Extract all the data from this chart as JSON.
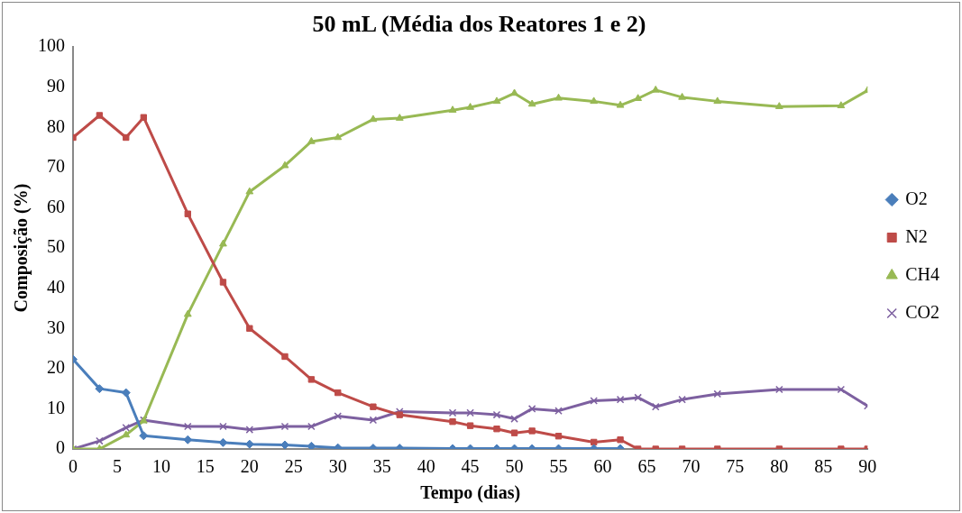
{
  "chart_data": {
    "type": "line",
    "title": "50 mL (Média dos Reatores 1 e 2)",
    "xlabel": "Tempo (dias)",
    "ylabel": "Composição (%)",
    "x": [
      0,
      3,
      6,
      8,
      13,
      17,
      20,
      24,
      27,
      30,
      34,
      37,
      43,
      45,
      48,
      50,
      52,
      55,
      59,
      62,
      64,
      66,
      69,
      73,
      80,
      87,
      90
    ],
    "xlim": [
      0,
      90
    ],
    "xticks": [
      0,
      5,
      10,
      15,
      20,
      25,
      30,
      35,
      40,
      45,
      50,
      55,
      60,
      65,
      70,
      75,
      80,
      85,
      90
    ],
    "ylim": [
      0,
      100
    ],
    "yticks": [
      0,
      10,
      20,
      30,
      40,
      50,
      60,
      70,
      80,
      90,
      100
    ],
    "grid": false,
    "legend": "right",
    "series": [
      {
        "name": "O2",
        "color": "#4a7ebb",
        "marker": "diamond",
        "values": [
          22.3,
          15,
          14,
          3.3,
          2.3,
          1.6,
          1.2,
          1.0,
          0.7,
          0.3,
          0.2,
          0.2,
          0.1,
          0.1,
          0.1,
          0.1,
          0.1,
          0.1,
          0.1,
          0.1,
          null,
          null,
          null,
          null,
          null,
          null,
          null
        ]
      },
      {
        "name": "N2",
        "color": "#be4b48",
        "marker": "square",
        "values": [
          77.5,
          83,
          77.5,
          82.5,
          58.5,
          41.5,
          30,
          23,
          17.3,
          14,
          10.5,
          8.5,
          6.8,
          5.8,
          5,
          4,
          4.5,
          3.2,
          1.7,
          2.3,
          0,
          0,
          0,
          0,
          0,
          0,
          0
        ]
      },
      {
        "name": "CH4",
        "color": "#98b954",
        "marker": "triangle",
        "values": [
          0,
          0,
          3.5,
          7,
          33.5,
          51,
          64,
          70.5,
          76.5,
          77.5,
          82,
          82.3,
          84.3,
          85,
          86.5,
          88.5,
          85.8,
          87.3,
          86.5,
          85.5,
          87.2,
          89.3,
          87.5,
          86.5,
          85.2,
          85.4,
          89.2
        ]
      },
      {
        "name": "CO2",
        "color": "#7d60a0",
        "marker": "cross",
        "values": [
          0,
          2,
          5.3,
          7.2,
          5.6,
          5.6,
          4.8,
          5.6,
          5.6,
          8.2,
          7.2,
          9.3,
          9,
          9,
          8.5,
          7.5,
          10,
          9.5,
          12,
          12.3,
          12.8,
          10.5,
          12.3,
          13.7,
          14.8,
          14.8,
          10.7
        ]
      }
    ]
  }
}
